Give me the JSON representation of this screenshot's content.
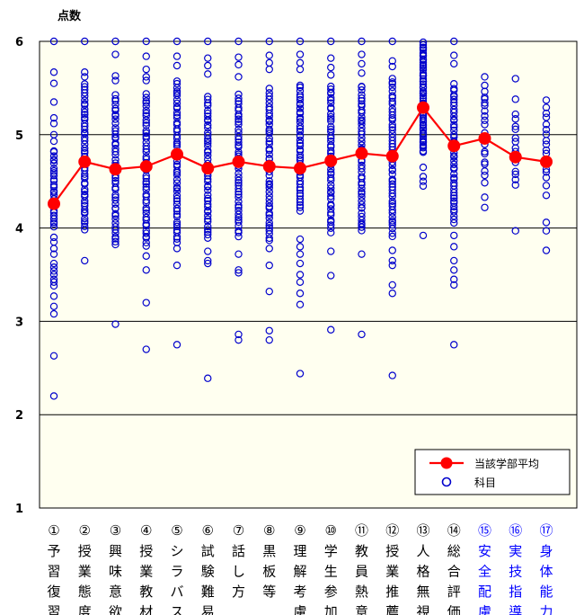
{
  "chart_data": {
    "type": "scatter",
    "ylabel": "点数",
    "ylim": [
      1,
      6
    ],
    "yticks": [
      "1",
      "2",
      "3",
      "4",
      "5",
      "6"
    ],
    "grid": true,
    "legend_position": "bottom-right",
    "colors": {
      "plot_bg": "#FFFFF0",
      "average": "#FF0000",
      "subject": "#0000CC",
      "category_black": "#000000",
      "category_blue": "#0000FF"
    },
    "categories": [
      {
        "num": "①",
        "label": "予習復習",
        "color": "black"
      },
      {
        "num": "②",
        "label": "授業態度",
        "color": "black"
      },
      {
        "num": "③",
        "label": "興味意欲",
        "color": "black"
      },
      {
        "num": "④",
        "label": "授業教材",
        "color": "black"
      },
      {
        "num": "⑤",
        "label": "シラバス",
        "color": "black"
      },
      {
        "num": "⑥",
        "label": "試験難易",
        "color": "black"
      },
      {
        "num": "⑦",
        "label": "話し方",
        "color": "black"
      },
      {
        "num": "⑧",
        "label": "黒板等",
        "color": "black"
      },
      {
        "num": "⑨",
        "label": "理解考慮",
        "color": "black"
      },
      {
        "num": "⑩",
        "label": "学生参加",
        "color": "black"
      },
      {
        "num": "⑪",
        "label": "教員熱意",
        "color": "black"
      },
      {
        "num": "⑫",
        "label": "授業推薦",
        "color": "black"
      },
      {
        "num": "⑬",
        "label": "人格無視",
        "color": "black"
      },
      {
        "num": "⑭",
        "label": "総合評価",
        "color": "black"
      },
      {
        "num": "⑮",
        "label": "安全配慮",
        "color": "blue"
      },
      {
        "num": "⑯",
        "label": "実技指導",
        "color": "blue"
      },
      {
        "num": "⑰",
        "label": "身体能力",
        "color": "blue"
      }
    ],
    "series": [
      {
        "name": "当該学部平均",
        "type": "line",
        "values": [
          4.26,
          4.71,
          4.63,
          4.66,
          4.79,
          4.64,
          4.71,
          4.66,
          4.64,
          4.72,
          4.8,
          4.77,
          5.29,
          4.88,
          4.96,
          4.76,
          4.71
        ]
      },
      {
        "name": "科目",
        "type": "scatter",
        "points": [
          {
            "min": 4.0,
            "max": 4.85,
            "n": 28,
            "extra": [
              6.0,
              5.67,
              5.55,
              5.35,
              5.18,
              5.12,
              5.0,
              4.93,
              3.9,
              3.85,
              3.78,
              3.72,
              3.62,
              3.58,
              3.54,
              3.5,
              3.45,
              3.42,
              3.38,
              3.27,
              3.16,
              3.08,
              2.63,
              2.2
            ]
          },
          {
            "min": 3.97,
            "max": 5.55,
            "n": 50,
            "extra": [
              6.0,
              5.67,
              5.62,
              3.65
            ]
          },
          {
            "min": 3.8,
            "max": 5.45,
            "n": 48,
            "extra": [
              6.0,
              5.86,
              5.63,
              5.58,
              2.97
            ]
          },
          {
            "min": 3.8,
            "max": 5.45,
            "n": 48,
            "extra": [
              6.0,
              5.84,
              5.7,
              5.62,
              5.58,
              3.7,
              3.55,
              3.2,
              2.7
            ]
          },
          {
            "min": 3.82,
            "max": 5.6,
            "n": 52,
            "extra": [
              6.0,
              5.84,
              5.74,
              3.78,
              3.6,
              2.75
            ]
          },
          {
            "min": 3.88,
            "max": 5.42,
            "n": 46,
            "extra": [
              6.0,
              5.82,
              5.74,
              5.65,
              3.75,
              3.65,
              3.62,
              2.39
            ]
          },
          {
            "min": 3.9,
            "max": 5.45,
            "n": 46,
            "extra": [
              6.0,
              5.83,
              5.75,
              5.62,
              3.72,
              3.55,
              3.52,
              2.86,
              2.8
            ]
          },
          {
            "min": 3.85,
            "max": 5.5,
            "n": 48,
            "extra": [
              6.0,
              5.85,
              5.77,
              5.7,
              3.78,
              3.6,
              3.32,
              2.9,
              2.8
            ]
          },
          {
            "min": 4.18,
            "max": 5.55,
            "n": 44,
            "extra": [
              6.0,
              5.86,
              5.77,
              5.7,
              3.88,
              3.8,
              3.72,
              3.62,
              3.5,
              3.42,
              3.3,
              3.18,
              2.44
            ]
          },
          {
            "min": 3.95,
            "max": 5.55,
            "n": 48,
            "extra": [
              6.0,
              5.82,
              5.72,
              5.64,
              3.75,
              3.49,
              2.91
            ]
          },
          {
            "min": 3.95,
            "max": 5.55,
            "n": 48,
            "extra": [
              6.0,
              5.86,
              5.76,
              5.66,
              3.72,
              2.86
            ]
          },
          {
            "min": 3.9,
            "max": 5.62,
            "n": 50,
            "extra": [
              6.0,
              5.79,
              5.73,
              3.76,
              3.65,
              3.6,
              3.39,
              3.3,
              2.42
            ]
          },
          {
            "min": 4.8,
            "max": 6.0,
            "n": 56,
            "extra": [
              4.65,
              4.55,
              4.5,
              4.45,
              3.92
            ]
          },
          {
            "min": 4.05,
            "max": 5.55,
            "n": 46,
            "extra": [
              6.0,
              5.85,
              5.76,
              3.92,
              3.8,
              3.65,
              3.55,
              3.45,
              3.39,
              2.75
            ]
          },
          {
            "min": 4.45,
            "max": 5.55,
            "n": 18,
            "extra": [
              5.62,
              5.4,
              5.34,
              4.33,
              4.22
            ]
          },
          {
            "min": 4.42,
            "max": 5.25,
            "n": 14,
            "extra": [
              5.6,
              5.38,
              3.97
            ]
          },
          {
            "min": 4.45,
            "max": 5.3,
            "n": 16,
            "extra": [
              5.37,
              4.35,
              4.06,
              3.97,
              3.76
            ]
          }
        ]
      }
    ]
  }
}
